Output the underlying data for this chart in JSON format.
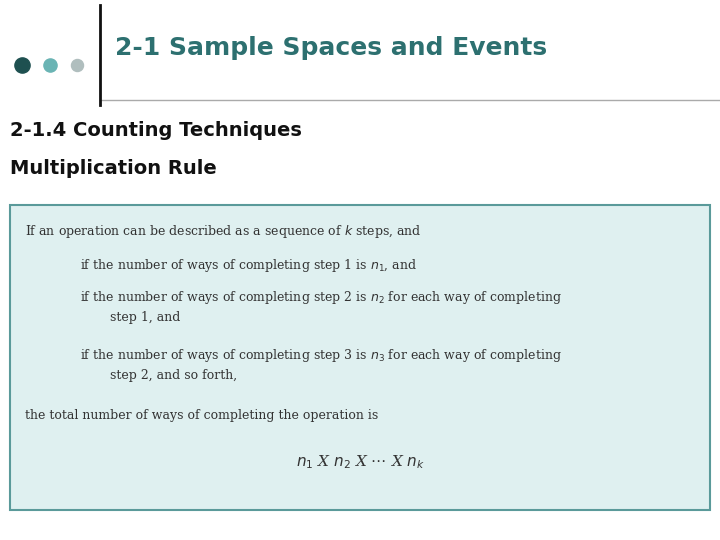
{
  "title": "2-1 Sample Spaces and Events",
  "subtitle1": "2-1.4 Counting Techniques",
  "subtitle2": "Multiplication Rule",
  "title_color": "#2d7070",
  "subtitle_color": "#111111",
  "dot_colors": [
    "#1e5050",
    "#6ab4b4",
    "#b0bebe"
  ],
  "box_bg": "#dff0f0",
  "box_border": "#5a9a9a",
  "bg_color": "#ffffff",
  "line_color": "#aaaaaa",
  "text_color": "#333333",
  "body_line1": "If an operation can be described as a sequence of $k$ steps, and",
  "body_line2": "if the number of ways of completing step 1 is $n_1$, and",
  "body_line3a": "if the number of ways of completing step 2 is $n_2$ for each way of completing",
  "body_line3b": "step 1, and",
  "body_line4a": "if the number of ways of completing step 3 is $n_3$ for each way of completing",
  "body_line4b": "step 2, and so forth,",
  "body_line5": "the total number of ways of completing the operation is",
  "formula": "$n_1$ X $n_2$ X $\\cdots$ X $n_k$"
}
